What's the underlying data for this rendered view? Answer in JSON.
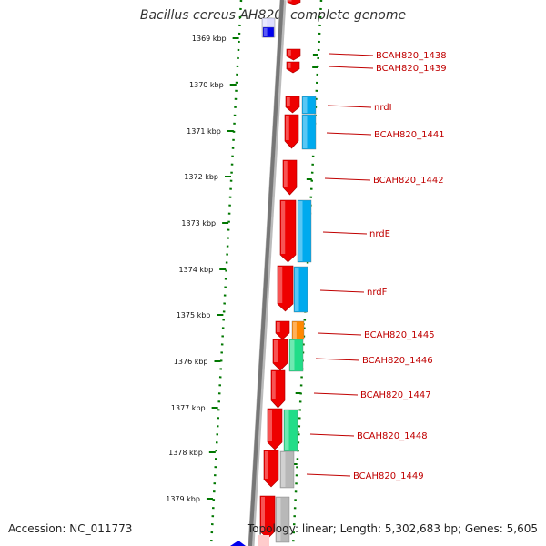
{
  "title": "Bacillus cereus AH820, complete genome",
  "footer": {
    "accession": "Accession: NC_011773",
    "info": "Topology: linear; Length: 5,302,683 bp; Genes: 5,605"
  },
  "colors": {
    "gene_red": "#ee0000",
    "gene_cyan": "#00aaee",
    "gene_green": "#22dd88",
    "gene_orange": "#ff8800",
    "gene_gray": "#b8b8b8",
    "backbone": "#777777",
    "tick_green": "#007700",
    "label_red": "#c00000"
  },
  "ruler": {
    "unit": "kbp",
    "ticks": [
      {
        "value": 1369,
        "label": "1369 kbp"
      },
      {
        "value": 1370,
        "label": "1370 kbp"
      },
      {
        "value": 1371,
        "label": "1371 kbp"
      },
      {
        "value": 1372,
        "label": "1372 kbp"
      },
      {
        "value": 1373,
        "label": "1373 kbp"
      },
      {
        "value": 1374,
        "label": "1374 kbp"
      },
      {
        "value": 1375,
        "label": "1375 kbp"
      },
      {
        "value": 1376,
        "label": "1376 kbp"
      },
      {
        "value": 1377,
        "label": "1377 kbp"
      },
      {
        "value": 1378,
        "label": "1378 kbp"
      },
      {
        "value": 1379,
        "label": "1379 kbp"
      }
    ]
  },
  "genes": [
    {
      "label": "BCAH820_1438"
    },
    {
      "label": "BCAH820_1439"
    },
    {
      "label": "nrdI"
    },
    {
      "label": "BCAH820_1441"
    },
    {
      "label": "BCAH820_1442"
    },
    {
      "label": "nrdE"
    },
    {
      "label": "nrdF"
    },
    {
      "label": "BCAH820_1445"
    },
    {
      "label": "BCAH820_1446"
    },
    {
      "label": "BCAH820_1447"
    },
    {
      "label": "BCAH820_1448"
    },
    {
      "label": "BCAH820_1449"
    }
  ]
}
